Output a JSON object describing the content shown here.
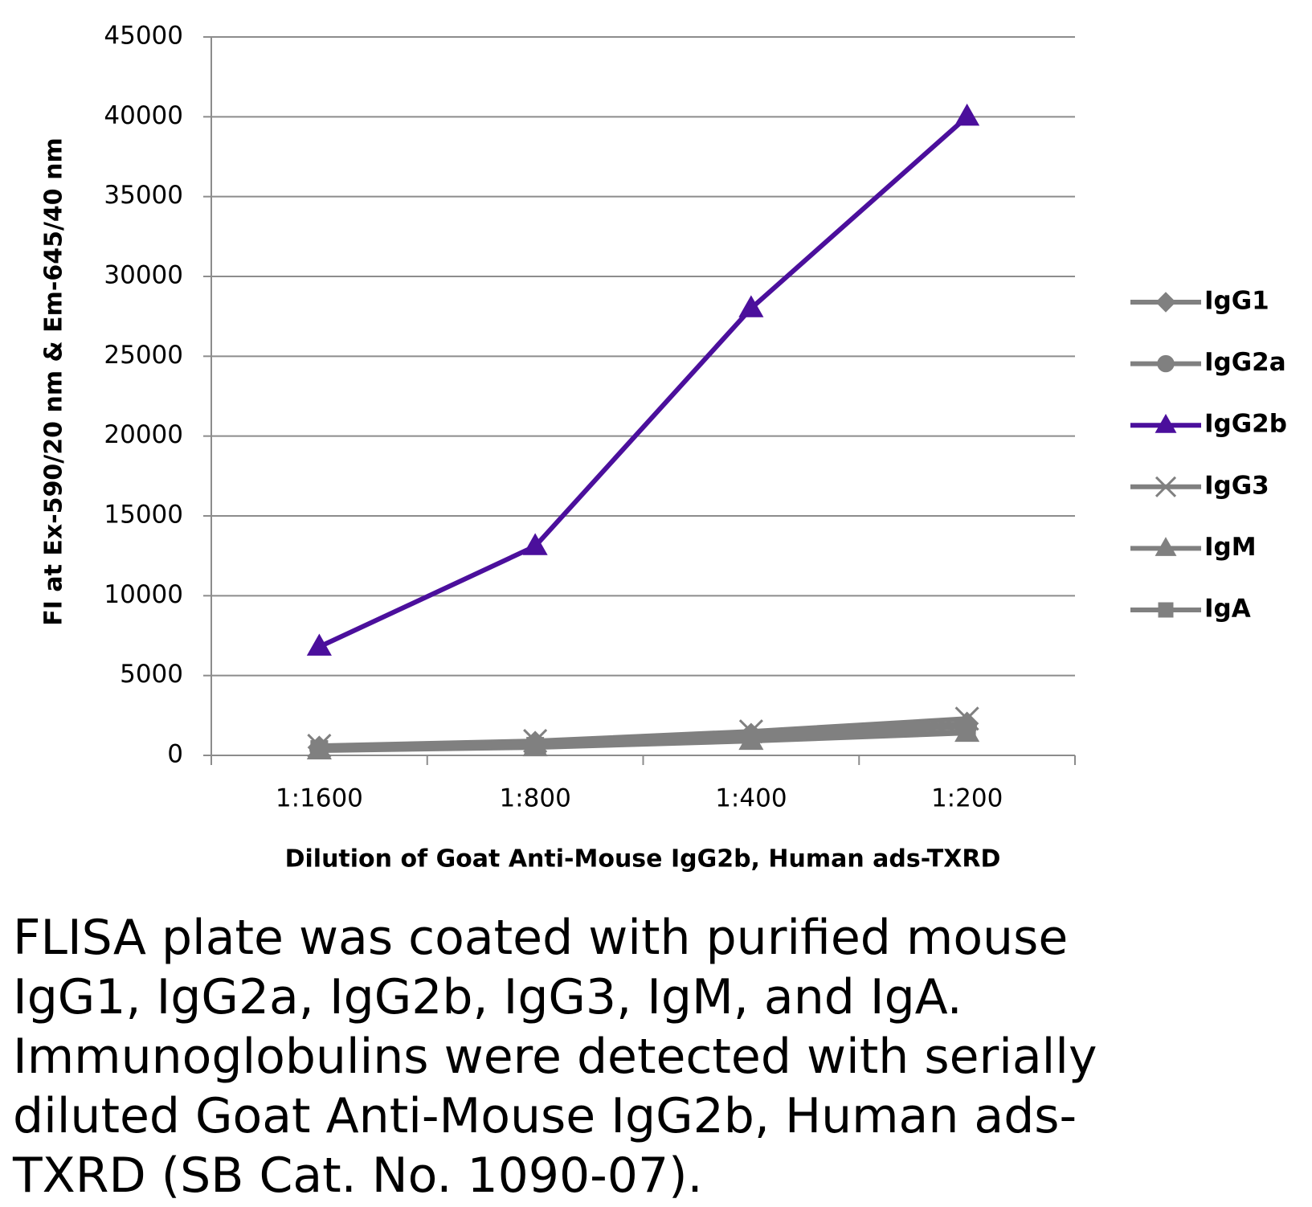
{
  "chart_data": {
    "type": "line",
    "x_label": "Dilution of Goat Anti-Mouse IgG2b, Human ads-TXRD",
    "y_label": "FI at Ex-590/20 nm & Em-645/40 nm",
    "categories": [
      "1:1600",
      "1:800",
      "1:400",
      "1:200"
    ],
    "ylim": [
      0,
      45000
    ],
    "yticks": [
      0,
      5000,
      10000,
      15000,
      20000,
      25000,
      30000,
      35000,
      40000,
      45000
    ],
    "grid": true,
    "legend": "right",
    "series": [
      {
        "name": "IgG1",
        "color": "#808080",
        "marker": "diamond",
        "values": [
          500,
          800,
          1300,
          2000
        ]
      },
      {
        "name": "IgG2a",
        "color": "#808080",
        "marker": "circle",
        "values": [
          400,
          700,
          1200,
          1800
        ]
      },
      {
        "name": "IgG2b",
        "color": "#4b0f9c",
        "marker": "triangle",
        "values": [
          6800,
          13100,
          28000,
          40000
        ]
      },
      {
        "name": "IgG3",
        "color": "#808080",
        "marker": "x",
        "values": [
          600,
          900,
          1500,
          2300
        ]
      },
      {
        "name": "IgM",
        "color": "#808080",
        "marker": "triangle",
        "values": [
          300,
          500,
          900,
          1400
        ]
      },
      {
        "name": "IgA",
        "color": "#808080",
        "marker": "square",
        "values": [
          400,
          600,
          1000,
          1500
        ]
      }
    ]
  },
  "caption": [
    "FLISA plate was coated with purified mouse",
    "IgG1, IgG2a, IgG2b, IgG3, IgM, and IgA.",
    "Immunoglobulins were detected with serially",
    "diluted Goat Anti-Mouse IgG2b, Human ads-",
    "TXRD (SB Cat. No. 1090-07)."
  ]
}
